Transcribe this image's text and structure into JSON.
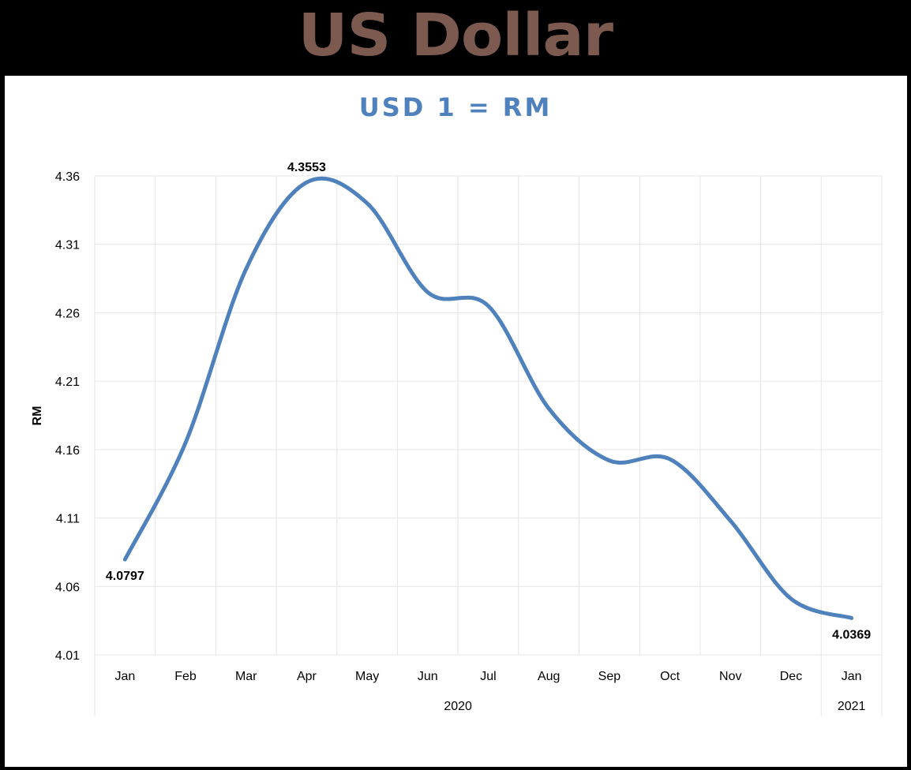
{
  "banner": {
    "title": "US Dollar"
  },
  "chart_data": {
    "type": "line",
    "title": "USD 1 = RM",
    "ylabel": "RM",
    "xlabel": "",
    "ylim": [
      4.01,
      4.36
    ],
    "yticks": [
      "4.36",
      "4.31",
      "4.26",
      "4.21",
      "4.16",
      "4.11",
      "4.06",
      "4.01"
    ],
    "categories": [
      "Jan",
      "Feb",
      "Mar",
      "Apr",
      "May",
      "Jun",
      "Jul",
      "Aug",
      "Sep",
      "Oct",
      "Nov",
      "Dec",
      "Jan"
    ],
    "year_groups": [
      {
        "label": "2020",
        "span": 12
      },
      {
        "label": "2021",
        "span": 1
      }
    ],
    "series": [
      {
        "values": [
          4.0797,
          4.165,
          4.292,
          4.3553,
          4.34,
          4.275,
          4.265,
          4.19,
          4.152,
          4.153,
          4.108,
          4.051,
          4.0369
        ],
        "color": "#4f81bd"
      }
    ],
    "data_labels": [
      {
        "index": 0,
        "text": "4.0797",
        "position": "below"
      },
      {
        "index": 3,
        "text": "4.3553",
        "position": "above"
      },
      {
        "index": 12,
        "text": "4.0369",
        "position": "below"
      }
    ],
    "grid": true,
    "legend": "none",
    "colors": {
      "line": "#4f81bd",
      "title": "#4f81bd",
      "banner": "#7d5a4f",
      "grid": "#e6e6e6"
    }
  }
}
